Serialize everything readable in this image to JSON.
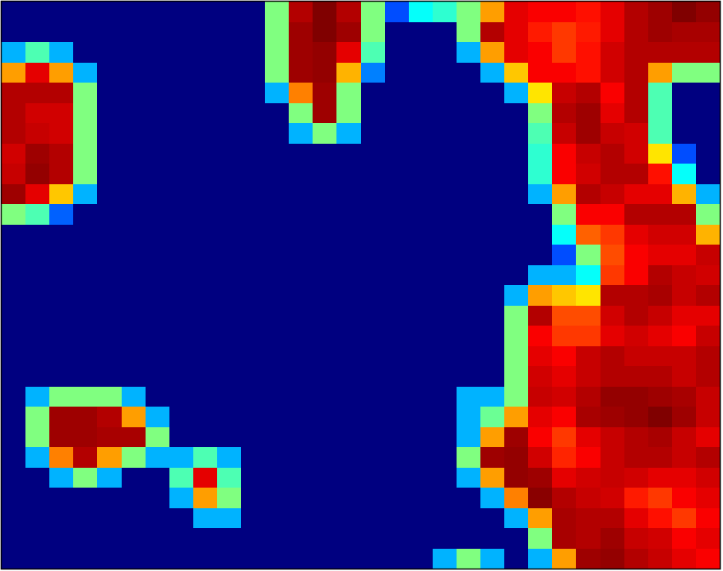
{
  "chart_data": {
    "type": "heatmap",
    "tick_labels": false,
    "zlim": [
      0,
      1
    ],
    "z": [
      [
        0,
        0,
        0,
        0,
        0,
        0,
        0,
        0,
        0,
        0,
        0,
        0.5,
        0.95,
        1,
        0.95,
        0.5,
        0.2,
        0.38,
        0.42,
        0.5,
        0.72,
        0.9,
        0.88,
        0.88,
        0.86,
        0.9,
        0.95,
        0.97,
        1,
        0.98
      ],
      [
        0,
        0,
        0,
        0,
        0,
        0,
        0,
        0,
        0,
        0,
        0,
        0.5,
        0.97,
        1,
        0.97,
        0.5,
        0,
        0,
        0,
        0.5,
        0.95,
        0.9,
        0.85,
        0.82,
        0.85,
        0.9,
        0.95,
        0.97,
        0.96,
        0.96
      ],
      [
        0.3,
        0.45,
        0.3,
        0,
        0,
        0,
        0,
        0,
        0,
        0,
        0,
        0.5,
        0.97,
        0.98,
        0.9,
        0.45,
        0,
        0,
        0,
        0.3,
        0.72,
        0.9,
        0.88,
        0.82,
        0.86,
        0.92,
        0.95,
        0.95,
        0.95,
        0.95
      ],
      [
        0.72,
        0.9,
        0.72,
        0.3,
        0,
        0,
        0,
        0,
        0,
        0,
        0,
        0.5,
        0.97,
        0.98,
        0.7,
        0.25,
        0,
        0,
        0,
        0,
        0.3,
        0.68,
        0.88,
        0.88,
        0.86,
        0.92,
        0.95,
        0.72,
        0.5,
        0.5
      ],
      [
        0.95,
        0.95,
        0.95,
        0.5,
        0,
        0,
        0,
        0,
        0,
        0,
        0,
        0.3,
        0.75,
        0.97,
        0.5,
        0,
        0,
        0,
        0,
        0,
        0,
        0.3,
        0.65,
        0.93,
        0.95,
        0.88,
        0.95,
        0.45,
        0,
        0
      ],
      [
        0.95,
        0.92,
        0.92,
        0.5,
        0,
        0,
        0,
        0,
        0,
        0,
        0,
        0,
        0.5,
        0.97,
        0.5,
        0,
        0,
        0,
        0,
        0,
        0,
        0,
        0.5,
        0.95,
        0.97,
        0.9,
        0.95,
        0.45,
        0,
        0
      ],
      [
        0.95,
        0.93,
        0.92,
        0.5,
        0,
        0,
        0,
        0,
        0,
        0,
        0,
        0,
        0.3,
        0.5,
        0.3,
        0,
        0,
        0,
        0,
        0,
        0,
        0,
        0.45,
        0.93,
        0.97,
        0.93,
        0.92,
        0.45,
        0,
        0
      ],
      [
        0.92,
        0.97,
        0.95,
        0.5,
        0,
        0,
        0,
        0,
        0,
        0,
        0,
        0,
        0,
        0,
        0,
        0,
        0,
        0,
        0,
        0,
        0,
        0,
        0.42,
        0.88,
        0.93,
        0.95,
        0.92,
        0.65,
        0.2,
        0
      ],
      [
        0.93,
        0.98,
        0.95,
        0.5,
        0,
        0,
        0,
        0,
        0,
        0,
        0,
        0,
        0,
        0,
        0,
        0,
        0,
        0,
        0,
        0,
        0,
        0,
        0.42,
        0.88,
        0.92,
        0.95,
        0.95,
        0.86,
        0.38,
        0
      ],
      [
        0.97,
        0.9,
        0.68,
        0.3,
        0,
        0,
        0,
        0,
        0,
        0,
        0,
        0,
        0,
        0,
        0,
        0,
        0,
        0,
        0,
        0,
        0,
        0,
        0.3,
        0.72,
        0.95,
        0.93,
        0.9,
        0.9,
        0.7,
        0.3
      ],
      [
        0.5,
        0.45,
        0.22,
        0,
        0,
        0,
        0,
        0,
        0,
        0,
        0,
        0,
        0,
        0,
        0,
        0,
        0,
        0,
        0,
        0,
        0,
        0,
        0,
        0.5,
        0.88,
        0.88,
        0.95,
        0.95,
        0.95,
        0.5
      ],
      [
        0,
        0,
        0,
        0,
        0,
        0,
        0,
        0,
        0,
        0,
        0,
        0,
        0,
        0,
        0,
        0,
        0,
        0,
        0,
        0,
        0,
        0,
        0,
        0.38,
        0.78,
        0.82,
        0.9,
        0.92,
        0.92,
        0.7
      ],
      [
        0,
        0,
        0,
        0,
        0,
        0,
        0,
        0,
        0,
        0,
        0,
        0,
        0,
        0,
        0,
        0,
        0,
        0,
        0,
        0,
        0,
        0,
        0,
        0.2,
        0.5,
        0.8,
        0.88,
        0.9,
        0.9,
        0.93
      ],
      [
        0,
        0,
        0,
        0,
        0,
        0,
        0,
        0,
        0,
        0,
        0,
        0,
        0,
        0,
        0,
        0,
        0,
        0,
        0,
        0,
        0,
        0,
        0.3,
        0.3,
        0.38,
        0.82,
        0.88,
        0.95,
        0.93,
        0.92
      ],
      [
        0,
        0,
        0,
        0,
        0,
        0,
        0,
        0,
        0,
        0,
        0,
        0,
        0,
        0,
        0,
        0,
        0,
        0,
        0,
        0,
        0,
        0.3,
        0.72,
        0.68,
        0.65,
        0.95,
        0.95,
        0.96,
        0.93,
        0.95
      ],
      [
        0,
        0,
        0,
        0,
        0,
        0,
        0,
        0,
        0,
        0,
        0,
        0,
        0,
        0,
        0,
        0,
        0,
        0,
        0,
        0,
        0,
        0.5,
        0.95,
        0.8,
        0.8,
        0.92,
        0.95,
        0.93,
        0.9,
        0.9
      ],
      [
        0,
        0,
        0,
        0,
        0,
        0,
        0,
        0,
        0,
        0,
        0,
        0,
        0,
        0,
        0,
        0,
        0,
        0,
        0,
        0,
        0,
        0.5,
        0.88,
        0.82,
        0.82,
        0.9,
        0.92,
        0.9,
        0.88,
        0.93
      ],
      [
        0,
        0,
        0,
        0,
        0,
        0,
        0,
        0,
        0,
        0,
        0,
        0,
        0,
        0,
        0,
        0,
        0,
        0,
        0,
        0,
        0,
        0.5,
        0.9,
        0.88,
        0.93,
        0.95,
        0.93,
        0.93,
        0.93,
        0.95
      ],
      [
        0,
        0,
        0,
        0,
        0,
        0,
        0,
        0,
        0,
        0,
        0,
        0,
        0,
        0,
        0,
        0,
        0,
        0,
        0,
        0,
        0,
        0.5,
        0.92,
        0.9,
        0.93,
        0.95,
        0.95,
        0.95,
        0.93,
        0.95
      ],
      [
        0,
        0.3,
        0.5,
        0.5,
        0.5,
        0.3,
        0,
        0,
        0,
        0,
        0,
        0,
        0,
        0,
        0,
        0,
        0,
        0,
        0,
        0.3,
        0.3,
        0.5,
        0.93,
        0.92,
        0.95,
        0.98,
        0.98,
        0.97,
        0.96,
        0.93
      ],
      [
        0,
        0.5,
        0.97,
        0.97,
        0.95,
        0.72,
        0.3,
        0,
        0,
        0,
        0,
        0,
        0,
        0,
        0,
        0,
        0,
        0,
        0,
        0.3,
        0.48,
        0.72,
        0.9,
        0.88,
        0.96,
        0.97,
        0.98,
        1,
        0.97,
        0.93
      ],
      [
        0,
        0.5,
        0.97,
        0.97,
        0.96,
        0.96,
        0.5,
        0,
        0,
        0,
        0,
        0,
        0,
        0,
        0,
        0,
        0,
        0,
        0,
        0.3,
        0.72,
        0.97,
        0.88,
        0.82,
        0.9,
        0.93,
        0.95,
        0.96,
        0.93,
        0.9
      ],
      [
        0,
        0.3,
        0.75,
        0.95,
        0.72,
        0.5,
        0.3,
        0.3,
        0.45,
        0.3,
        0,
        0,
        0,
        0,
        0,
        0,
        0,
        0,
        0,
        0.5,
        0.97,
        0.98,
        0.92,
        0.84,
        0.88,
        0.93,
        0.95,
        0.95,
        0.93,
        0.95
      ],
      [
        0,
        0,
        0.3,
        0.5,
        0.3,
        0,
        0,
        0.45,
        0.9,
        0.45,
        0,
        0,
        0,
        0,
        0,
        0,
        0,
        0,
        0,
        0.3,
        0.72,
        0.98,
        0.97,
        0.9,
        0.92,
        0.93,
        0.92,
        0.9,
        0.9,
        0.92
      ],
      [
        0,
        0,
        0,
        0,
        0,
        0,
        0,
        0.3,
        0.72,
        0.5,
        0,
        0,
        0,
        0,
        0,
        0,
        0,
        0,
        0,
        0,
        0.3,
        0.75,
        0.99,
        0.95,
        0.93,
        0.92,
        0.85,
        0.82,
        0.88,
        0.9
      ],
      [
        0,
        0,
        0,
        0,
        0,
        0,
        0,
        0,
        0.3,
        0.3,
        0,
        0,
        0,
        0,
        0,
        0,
        0,
        0,
        0,
        0,
        0,
        0.3,
        0.72,
        0.96,
        0.95,
        0.95,
        0.9,
        0.86,
        0.82,
        0.88
      ],
      [
        0,
        0,
        0,
        0,
        0,
        0,
        0,
        0,
        0,
        0,
        0,
        0,
        0,
        0,
        0,
        0,
        0,
        0,
        0,
        0,
        0,
        0,
        0.5,
        0.96,
        0.95,
        0.97,
        0.93,
        0.92,
        0.88,
        0.9
      ],
      [
        0,
        0,
        0,
        0,
        0,
        0,
        0,
        0,
        0,
        0,
        0,
        0,
        0,
        0,
        0,
        0,
        0,
        0,
        0.3,
        0.5,
        0.3,
        0,
        0.3,
        0.72,
        0.97,
        0.98,
        0.95,
        0.93,
        0.9,
        0.88
      ]
    ]
  }
}
